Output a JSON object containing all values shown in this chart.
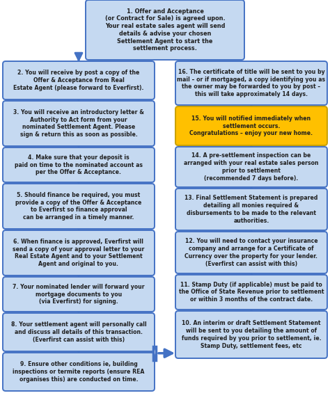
{
  "bg_color": "#ffffff",
  "box_fill": "#c5d9f1",
  "box_edge": "#4472c4",
  "highlight_fill": "#ffc000",
  "highlight_edge": "#c8a000",
  "arrow_color": "#4472c4",
  "font_color": "#1f1f1f",
  "figw": 4.74,
  "figh": 5.98,
  "dpi": 100,
  "left_boxes": [
    {
      "text": "1. Offer and Acceptance\n(or Contract for Sale) is agreed upon.\nYour real estate sales agent will send\ndetails & advise your chosen\nSettlement Agent to start the\nsettlement process.",
      "center": true
    },
    {
      "text": "2. You will receive by post a copy of the\nOffer & Acceptance from Real\nEstate Agent (please forward to Everfirst).",
      "center": false
    },
    {
      "text": "3. You will receive an introductory letter &\nAuthority to Act form from your\nnominated Settlement Agent. Please\nsign & return this as soon as possible.",
      "center": false
    },
    {
      "text": "4. Make sure that your deposit is\npaid on time to the nominated account as\nper the Offer & Acceptance.",
      "center": false
    },
    {
      "text": "5. Should finance be required, you must\nprovide a copy of the Offer & Acceptance\nto Everfirst so finance approval\ncan be arranged in a timely manner.",
      "center": false
    },
    {
      "text": "6. When finance is approved, Everfirst will\nsend a copy of your approval letter to your\nReal Estate Agent and to your Settlement\nAgent and original to you.",
      "center": false
    },
    {
      "text": "7. Your nominated lender will forward your\nmortgage documents to you\n(via Everfirst) for signing.",
      "center": false
    },
    {
      "text": "8. Your settlement agent will personally call\nand discuss all details of this transaction.\n(Everfirst can assist with this)",
      "center": false
    },
    {
      "text": "9. Ensure other conditions ie, building\ninspections or termite reports (ensure REA\norganises this) are conducted on time.",
      "center": false
    }
  ],
  "right_boxes": [
    {
      "text": "16. The certificate of title will be sent to you by\nmail – or if mortgaged, a copy identifying you as\nthe owner may be forwarded to you by post –\nthis will take approximately 14 days.",
      "highlight": false
    },
    {
      "text": "15. You will notified immediately when\nsettlement occurs.\nCongratulations – enjoy your new home.",
      "highlight": true
    },
    {
      "text": "14. A pre-settlement inspection can be\narranged with your real estate sales person\nprior to settlement\n(recommended 7 days before).",
      "highlight": false
    },
    {
      "text": "13. Final Settlement Statement is prepared\ndetailing all monies required &\ndisbursements to be made to the relevant\nauthorities.",
      "highlight": false
    },
    {
      "text": "12. You will need to contact your insurance\ncompany and arrange for a Certificate of\nCurrency over the property for your lender.\n(Everfirst can assist with this)",
      "highlight": false
    },
    {
      "text": "11. Stamp Duty (if applicable) must be paid to\nthe Office of State Revenue prior to settlement\nor within 3 months of the contract date.",
      "highlight": false
    },
    {
      "text": "10. An interim or draft Settlement Statement\nwill be sent to you detailing the amount of\nfunds required by you prior to settlement, ie.\nStamp Duty, settlement fees, etc",
      "highlight": false
    }
  ]
}
